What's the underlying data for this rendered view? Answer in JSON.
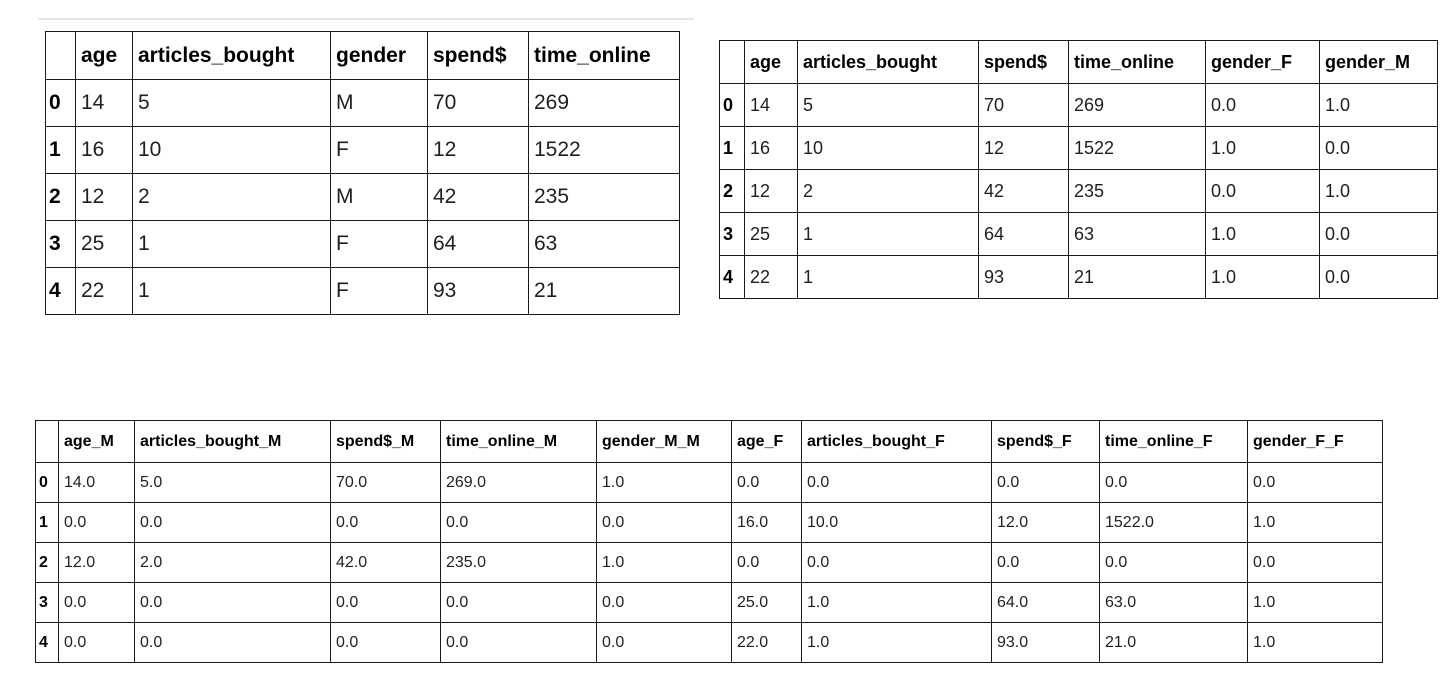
{
  "table1": {
    "columns": [
      "age",
      "articles_bought",
      "gender",
      "spend$",
      "time_online"
    ],
    "rows": [
      {
        "index": "0",
        "cells": [
          "14",
          "5",
          "M",
          "70",
          "269"
        ]
      },
      {
        "index": "1",
        "cells": [
          "16",
          "10",
          "F",
          "12",
          "1522"
        ]
      },
      {
        "index": "2",
        "cells": [
          "12",
          "2",
          "M",
          "42",
          "235"
        ]
      },
      {
        "index": "3",
        "cells": [
          "25",
          "1",
          "F",
          "64",
          "63"
        ]
      },
      {
        "index": "4",
        "cells": [
          "22",
          "1",
          "F",
          "93",
          "21"
        ]
      }
    ]
  },
  "table2": {
    "columns": [
      "age",
      "articles_bought",
      "spend$",
      "time_online",
      "gender_F",
      "gender_M"
    ],
    "rows": [
      {
        "index": "0",
        "cells": [
          "14",
          "5",
          "70",
          "269",
          "0.0",
          "1.0"
        ]
      },
      {
        "index": "1",
        "cells": [
          "16",
          "10",
          "12",
          "1522",
          "1.0",
          "0.0"
        ]
      },
      {
        "index": "2",
        "cells": [
          "12",
          "2",
          "42",
          "235",
          "0.0",
          "1.0"
        ]
      },
      {
        "index": "3",
        "cells": [
          "25",
          "1",
          "64",
          "63",
          "1.0",
          "0.0"
        ]
      },
      {
        "index": "4",
        "cells": [
          "22",
          "1",
          "93",
          "21",
          "1.0",
          "0.0"
        ]
      }
    ]
  },
  "table3": {
    "columns": [
      "age_M",
      "articles_bought_M",
      "spend$_M",
      "time_online_M",
      "gender_M_M",
      "age_F",
      "articles_bought_F",
      "spend$_F",
      "time_online_F",
      "gender_F_F"
    ],
    "rows": [
      {
        "index": "0",
        "cells": [
          "14.0",
          "5.0",
          "70.0",
          "269.0",
          "1.0",
          "0.0",
          "0.0",
          "0.0",
          "0.0",
          "0.0"
        ]
      },
      {
        "index": "1",
        "cells": [
          "0.0",
          "0.0",
          "0.0",
          "0.0",
          "0.0",
          "16.0",
          "10.0",
          "12.0",
          "1522.0",
          "1.0"
        ]
      },
      {
        "index": "2",
        "cells": [
          "12.0",
          "2.0",
          "42.0",
          "235.0",
          "1.0",
          "0.0",
          "0.0",
          "0.0",
          "0.0",
          "0.0"
        ]
      },
      {
        "index": "3",
        "cells": [
          "0.0",
          "0.0",
          "0.0",
          "0.0",
          "0.0",
          "25.0",
          "1.0",
          "64.0",
          "63.0",
          "1.0"
        ]
      },
      {
        "index": "4",
        "cells": [
          "0.0",
          "0.0",
          "0.0",
          "0.0",
          "0.0",
          "22.0",
          "1.0",
          "93.0",
          "21.0",
          "1.0"
        ]
      }
    ]
  }
}
